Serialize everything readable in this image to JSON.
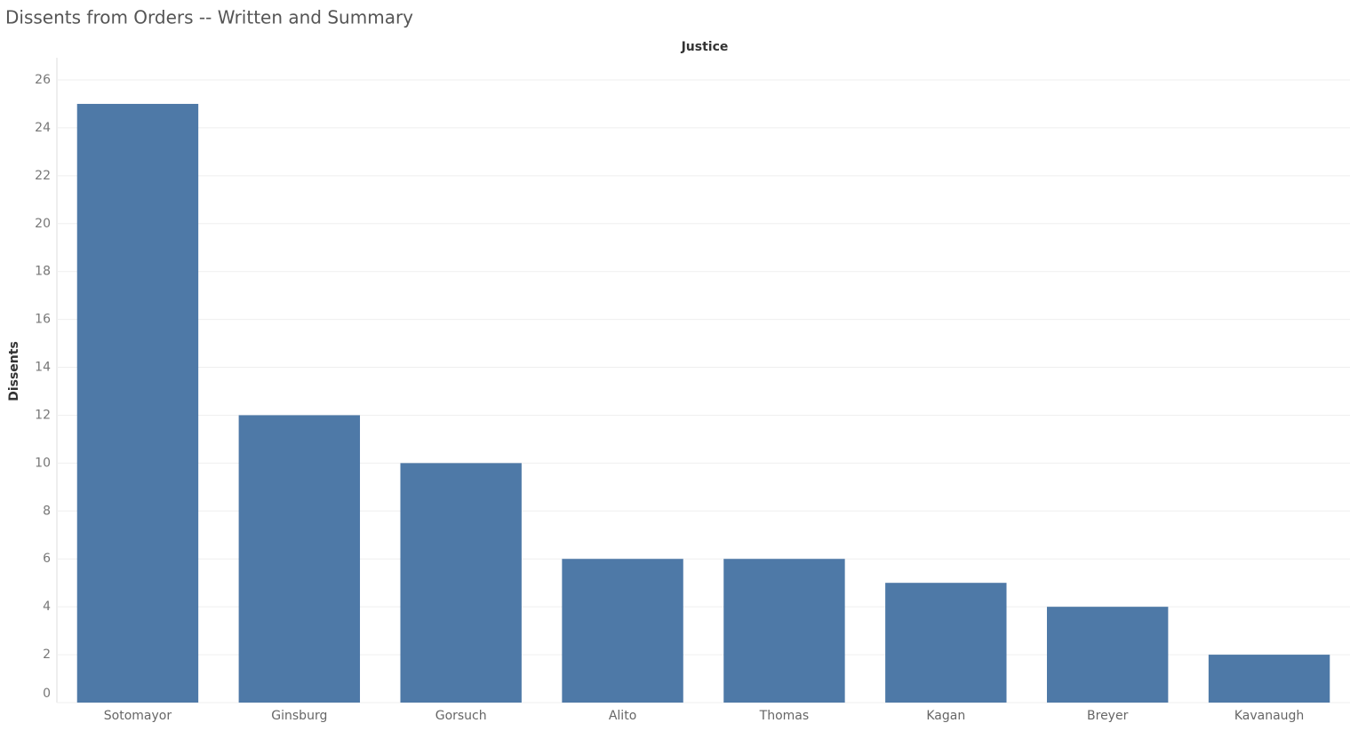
{
  "chart_data": {
    "type": "bar",
    "title": "Dissents from Orders -- Written and Summary",
    "x_label": "Justice",
    "y_label": "Dissents",
    "categories": [
      "Sotomayor",
      "Ginsburg",
      "Gorsuch",
      "Alito",
      "Thomas",
      "Kagan",
      "Breyer",
      "Kavanaugh"
    ],
    "values": [
      25,
      12,
      10,
      6,
      6,
      5,
      4,
      2
    ],
    "color": "#4e79a7",
    "ylim": [
      0,
      26
    ],
    "yticks": [
      0,
      2,
      4,
      6,
      8,
      10,
      12,
      14,
      16,
      18,
      20,
      22,
      24,
      26
    ],
    "grid": true
  }
}
